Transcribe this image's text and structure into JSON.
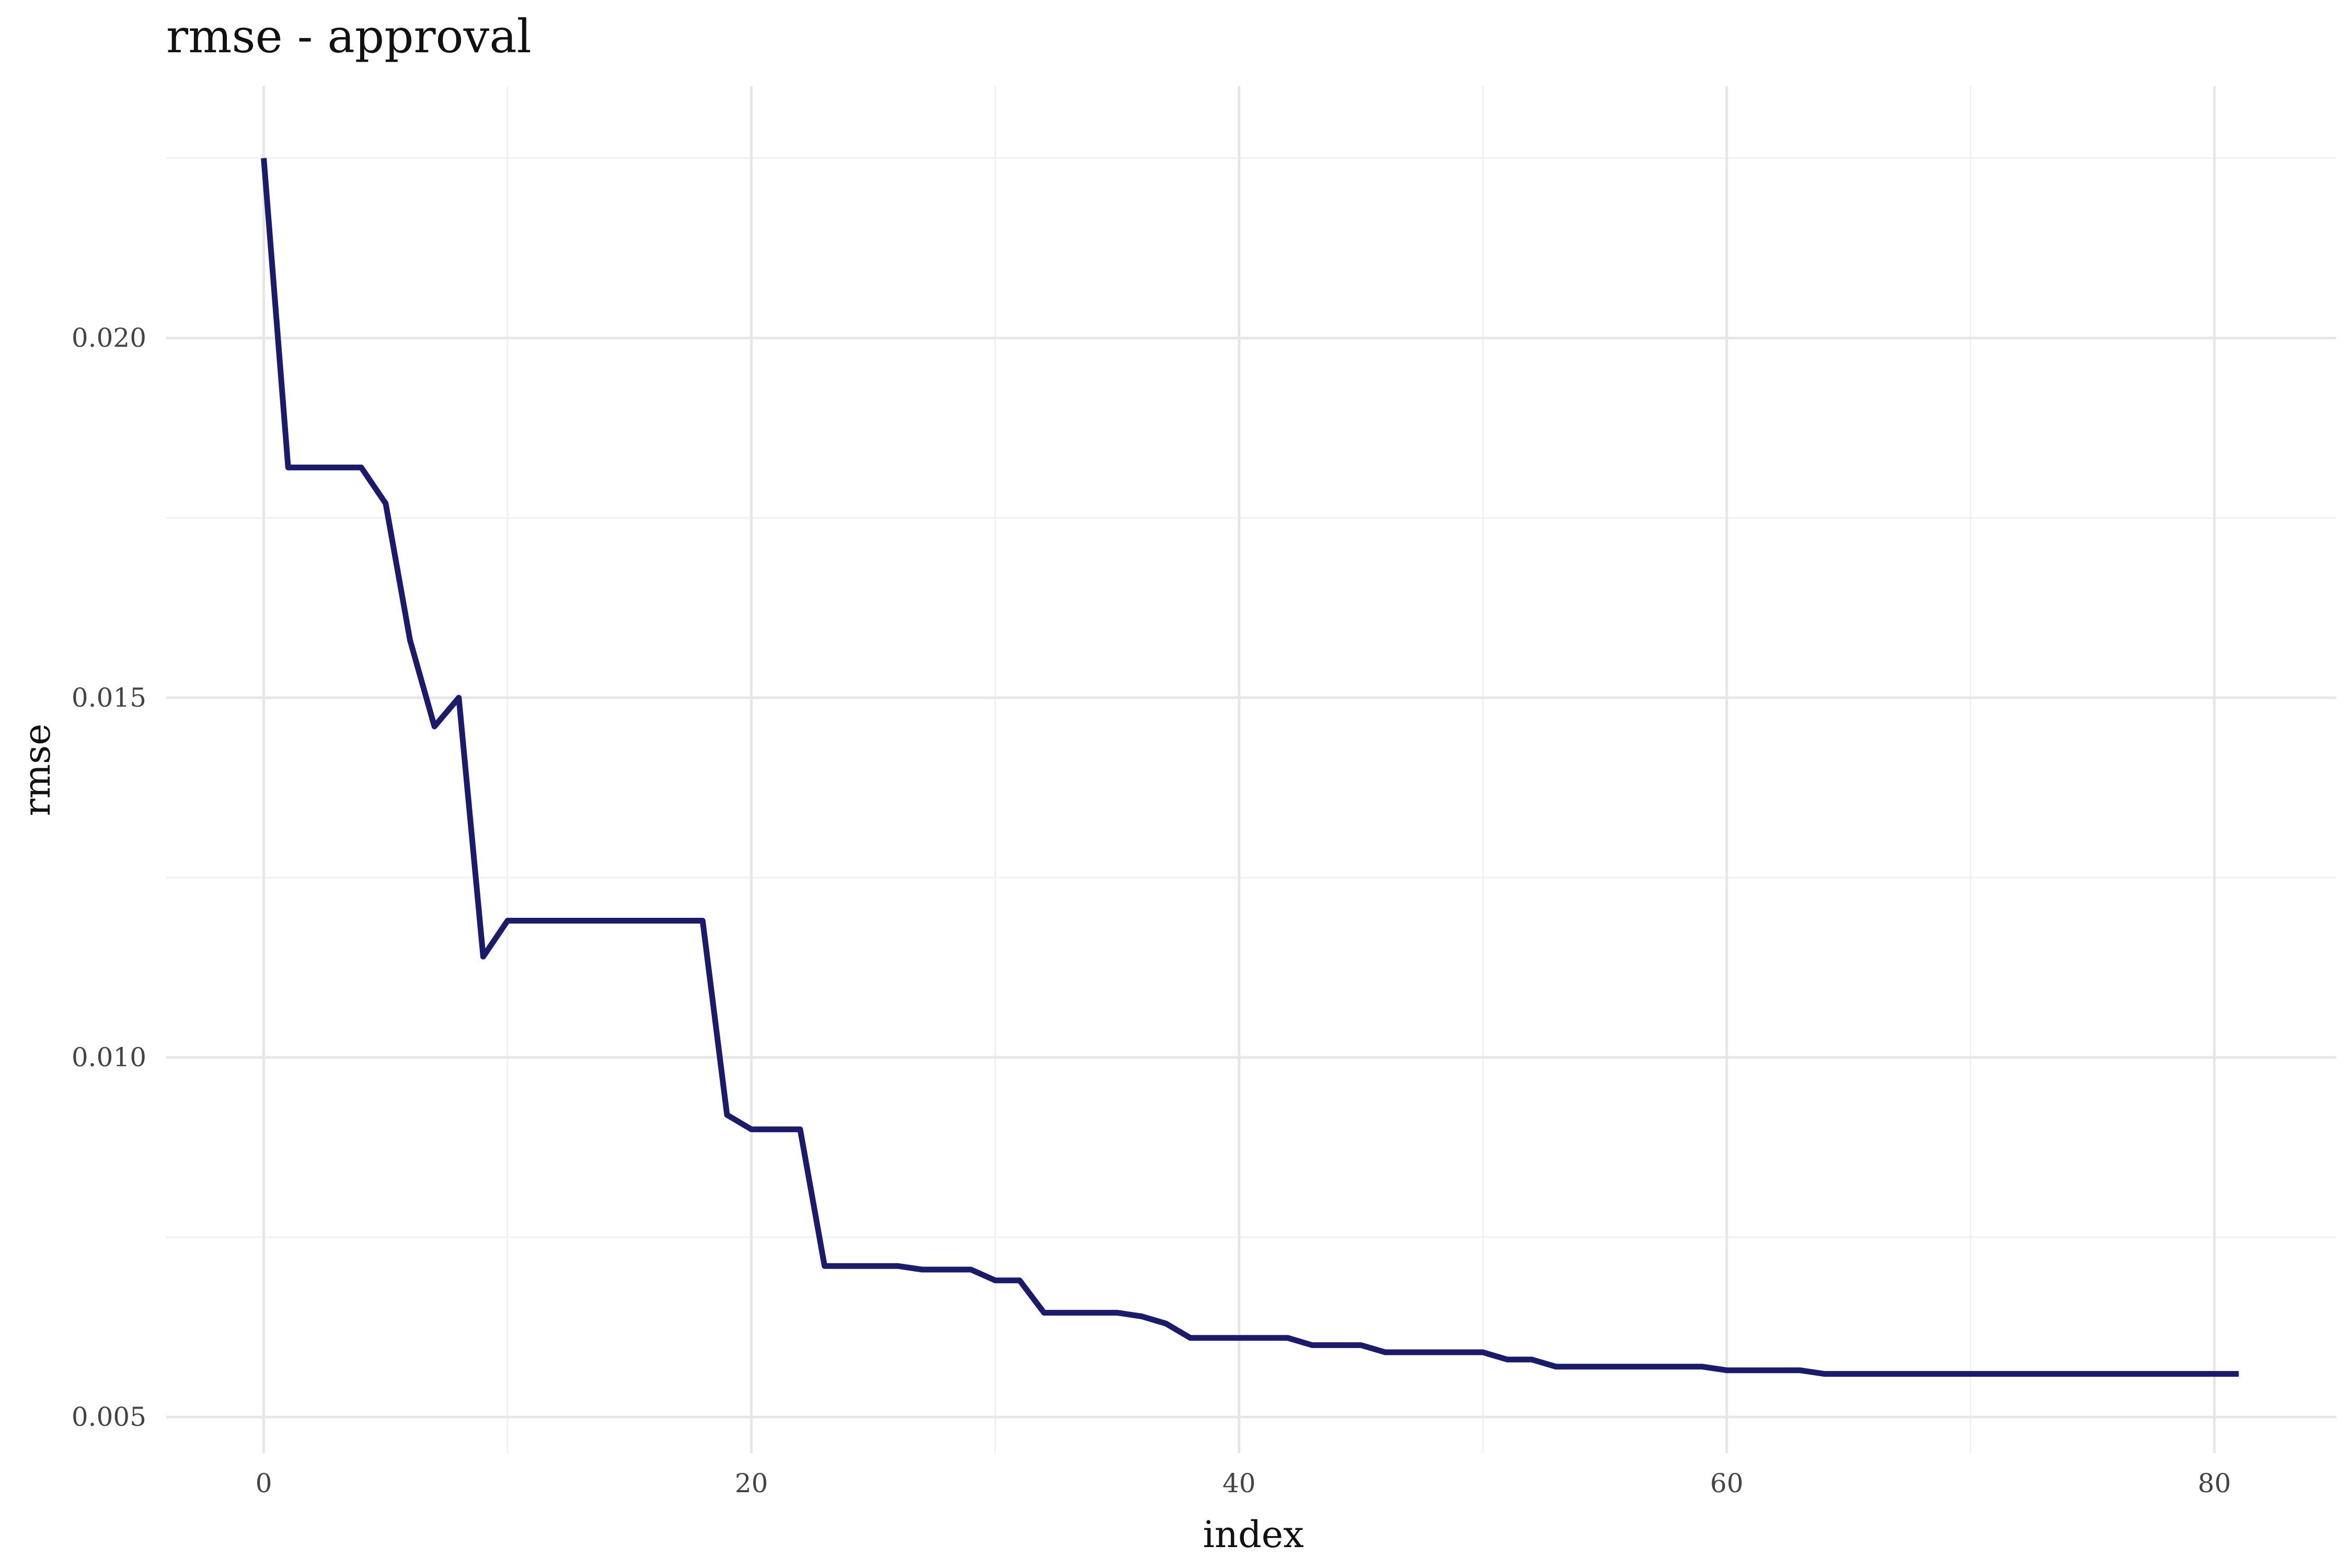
{
  "chart_data": {
    "type": "line",
    "title": "rmse - approval",
    "xlabel": "index",
    "ylabel": "rmse",
    "xlim": [
      -4,
      85
    ],
    "ylim": [
      0.0045,
      0.0235
    ],
    "x_ticks": [
      0,
      20,
      40,
      60,
      80
    ],
    "y_ticks": [
      0.005,
      0.01,
      0.015,
      0.02
    ],
    "y_tick_labels": [
      "0.005",
      "0.010",
      "0.015",
      "0.020"
    ],
    "grid": true,
    "legend": "none",
    "color": "#1b1b6b",
    "x": [
      0,
      1,
      2,
      3,
      4,
      5,
      6,
      7,
      8,
      9,
      10,
      11,
      12,
      13,
      14,
      15,
      16,
      17,
      18,
      19,
      20,
      21,
      22,
      23,
      24,
      25,
      26,
      27,
      28,
      29,
      30,
      31,
      32,
      33,
      34,
      35,
      36,
      37,
      38,
      39,
      40,
      41,
      42,
      43,
      44,
      45,
      46,
      47,
      48,
      49,
      50,
      51,
      52,
      53,
      54,
      55,
      56,
      57,
      58,
      59,
      60,
      61,
      62,
      63,
      64,
      65,
      66,
      67,
      68,
      69,
      70,
      71,
      72,
      73,
      74,
      75,
      76,
      77,
      78,
      79,
      80,
      81
    ],
    "y": [
      0.0225,
      0.0182,
      0.0182,
      0.0182,
      0.0182,
      0.0177,
      0.0158,
      0.0146,
      0.015,
      0.0114,
      0.0119,
      0.0119,
      0.0119,
      0.0119,
      0.0119,
      0.0119,
      0.0119,
      0.0119,
      0.0119,
      0.0092,
      0.009,
      0.009,
      0.009,
      0.0071,
      0.0071,
      0.0071,
      0.0071,
      0.00705,
      0.00705,
      0.00705,
      0.0069,
      0.0069,
      0.00645,
      0.00645,
      0.00645,
      0.00645,
      0.0064,
      0.0063,
      0.0061,
      0.0061,
      0.0061,
      0.0061,
      0.0061,
      0.006,
      0.006,
      0.006,
      0.0059,
      0.0059,
      0.0059,
      0.0059,
      0.0059,
      0.0058,
      0.0058,
      0.0057,
      0.0057,
      0.0057,
      0.0057,
      0.0057,
      0.0057,
      0.0057,
      0.00565,
      0.00565,
      0.00565,
      0.00565,
      0.0056,
      0.0056,
      0.0056,
      0.0056,
      0.0056,
      0.0056,
      0.0056,
      0.0056,
      0.0056,
      0.0056,
      0.0056,
      0.0056,
      0.0056,
      0.0056,
      0.0056,
      0.0056,
      0.0056,
      0.0056
    ]
  }
}
